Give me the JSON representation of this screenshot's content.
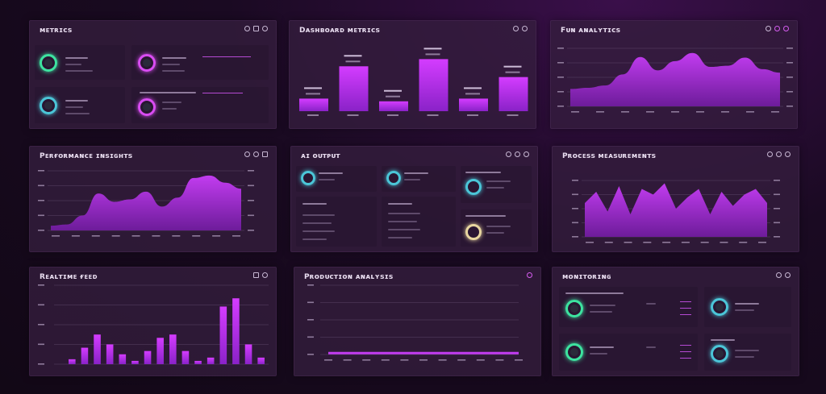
{
  "colors": {
    "accent": "#c23cf0",
    "green": "#3de3a0",
    "cyan": "#4bc6d8",
    "pink": "#d94cf2",
    "gold": "#e8d6a0",
    "background": "#160a1c"
  },
  "panels": {
    "p1": {
      "title": "ᴍᴇᴛʀɪᴄs"
    },
    "p2": {
      "title": "Dᴀsʜʙᴏᴀʀᴅ ᴍᴇᴛʀɪᴄs"
    },
    "p3": {
      "title": "Fᴜɴ ᴀɴᴀʟʏᴛɪᴄs"
    },
    "p4": {
      "title": "Pᴇʀғᴏʀᴍᴀɴᴄᴇ ɪɴsɪɢʜᴛs"
    },
    "p5": {
      "title": "ᴀɪ ᴏᴜᴛᴘᴜᴛ"
    },
    "p6": {
      "title": "Pʀᴏᴄᴇss ᴍᴇᴀsᴜʀᴇᴍᴇɴᴛs"
    },
    "p7": {
      "title": "Rᴇᴀʟᴛɪᴍᴇ ғᴇᴇᴅ"
    },
    "p8": {
      "title": "Pʀᴏᴅᴜᴄᴛɪᴏɴ ᴀɴᴀʟʏsɪs"
    },
    "p9": {
      "title": "ᴍᴏɴɪᴛᴏʀɪɴɢ"
    }
  },
  "icons": [
    "settings-icon",
    "refresh-icon",
    "close-icon",
    "more-icon"
  ],
  "chart_data": [
    {
      "type": "bar",
      "categories": [
        "",
        "",
        "",
        "",
        "",
        ""
      ],
      "values": [
        14,
        50,
        11,
        58,
        14,
        38
      ],
      "ylim": [
        0,
        70
      ]
    },
    {
      "type": "area",
      "values": [
        30,
        32,
        36,
        55,
        85,
        62,
        78,
        92,
        68,
        70,
        84,
        64,
        58
      ],
      "ylim": [
        0,
        100
      ]
    },
    {
      "type": "area",
      "values": [
        8,
        10,
        25,
        62,
        48,
        52,
        65,
        40,
        55,
        88,
        92,
        80,
        70
      ],
      "ylim": [
        0,
        100
      ]
    },
    {
      "type": "area",
      "values": [
        60,
        80,
        45,
        90,
        40,
        85,
        75,
        95,
        50,
        70,
        85,
        40,
        80,
        55,
        75,
        85,
        60
      ],
      "ylim": [
        0,
        100
      ]
    },
    {
      "type": "bar",
      "values": [
        3,
        10,
        18,
        12,
        6,
        2,
        8,
        16,
        18,
        8,
        2,
        4,
        35,
        40,
        12,
        4
      ],
      "ylim": [
        0,
        45
      ]
    },
    {
      "type": "line",
      "values": [
        2,
        2,
        2,
        2,
        2,
        2,
        2,
        2,
        2,
        2,
        2
      ],
      "ylim": [
        0,
        100
      ]
    }
  ]
}
